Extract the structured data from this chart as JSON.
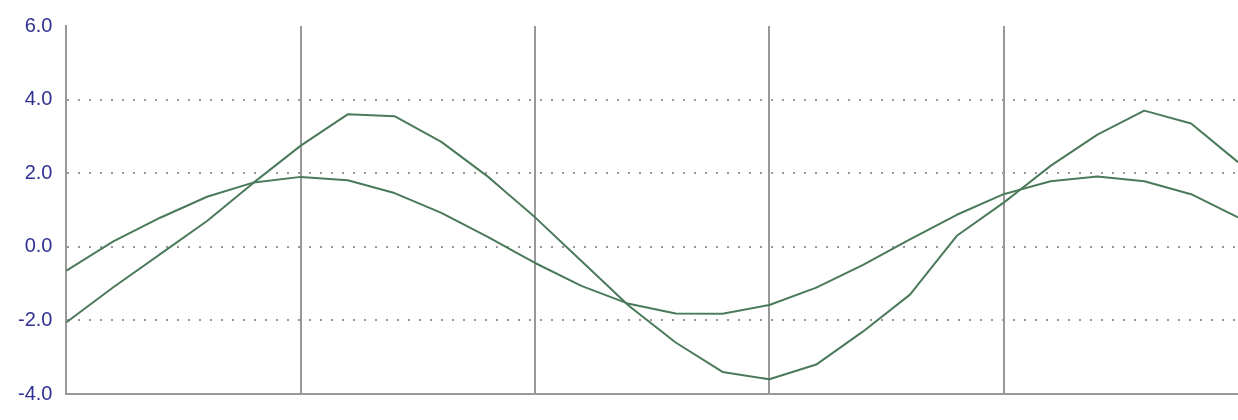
{
  "chart_data": {
    "type": "line",
    "categories": [
      null,
      null,
      null,
      null,
      null,
      null,
      null,
      null,
      null,
      null,
      null,
      null,
      null,
      null,
      null,
      null,
      null,
      null,
      null,
      null,
      null,
      null,
      null,
      null,
      null,
      null
    ],
    "series": [
      {
        "color": "#4a7a5a",
        "values": [
          -2.05,
          -1.1,
          -0.2,
          0.7,
          1.75,
          2.75,
          3.6,
          3.55,
          2.85,
          1.9,
          0.8,
          -0.4,
          -1.6,
          -2.6,
          -3.4,
          -3.6,
          -3.2,
          -2.3,
          -1.3,
          0.3,
          1.2,
          2.2,
          3.05,
          3.7,
          3.35,
          2.3
        ]
      },
      {
        "color": "#4a7a5a",
        "values": [
          -0.65,
          0.15,
          0.79,
          1.36,
          1.75,
          1.9,
          1.81,
          1.46,
          0.92,
          0.26,
          -0.44,
          -1.07,
          -1.55,
          -1.81,
          -1.82,
          -1.58,
          -1.11,
          -0.49,
          0.2,
          0.87,
          1.43,
          1.78,
          1.91,
          1.78,
          1.43,
          0.8
        ]
      }
    ],
    "ylim": [
      -4,
      6
    ],
    "yticks": [
      {
        "value": -4,
        "label": "-4.0"
      },
      {
        "value": -2,
        "label": "-2.0"
      },
      {
        "value": 0,
        "label": "0.0"
      },
      {
        "value": 2,
        "label": "2.0"
      },
      {
        "value": 4,
        "label": "4.0"
      },
      {
        "value": 6,
        "label": "6.0"
      }
    ],
    "grid": true,
    "legend": false,
    "tick_labels": "y",
    "marker": "none",
    "line_style": "solid"
  }
}
